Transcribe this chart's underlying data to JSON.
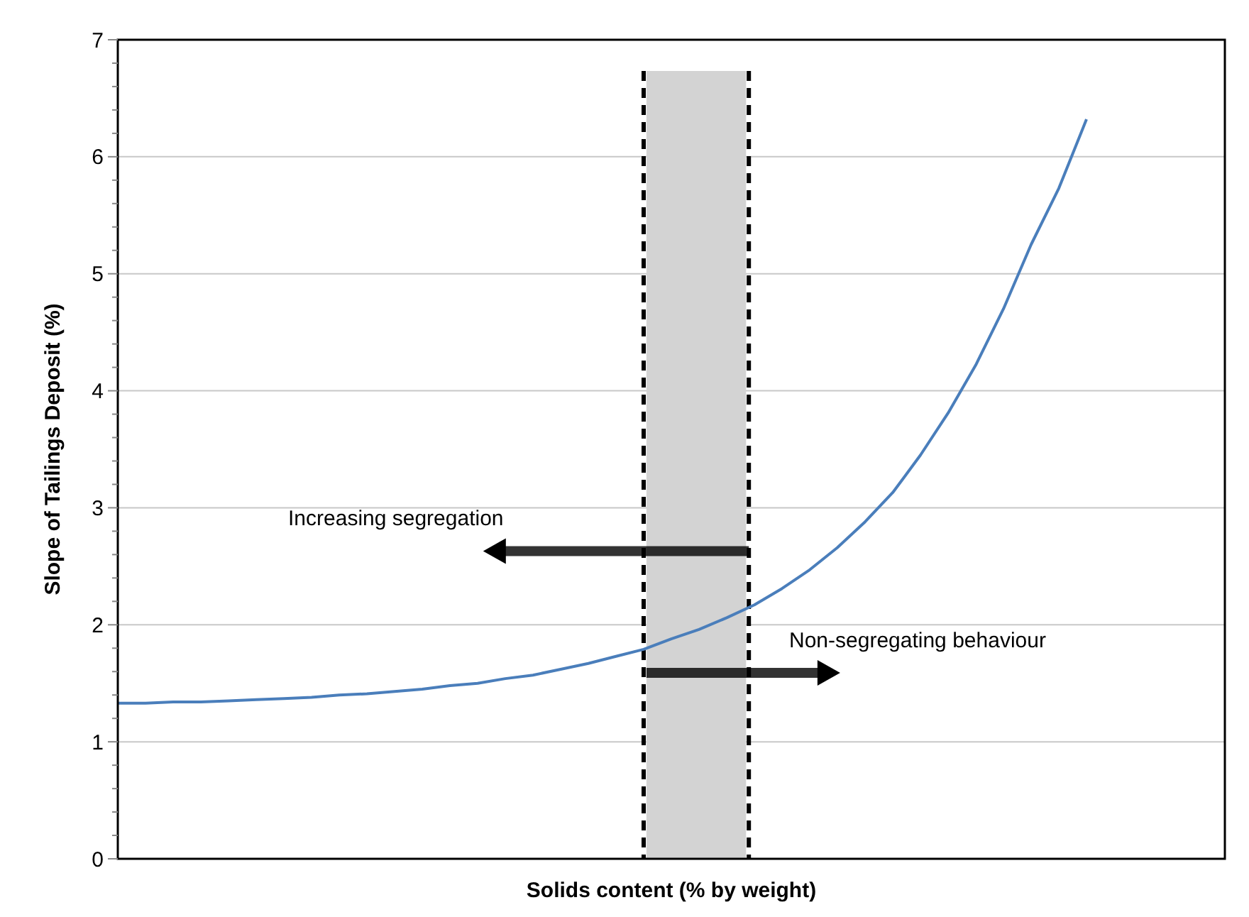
{
  "chart_data": {
    "type": "line",
    "xlabel": "Solids content (% by weight)",
    "ylabel": "Slope of Tailings Deposit (%)",
    "categories": [
      null,
      null,
      null,
      null,
      null,
      null,
      null,
      null,
      null,
      null,
      null,
      null,
      null,
      null,
      null,
      null,
      null,
      null,
      null,
      null,
      null,
      null,
      null,
      null,
      null,
      null,
      null,
      null,
      null,
      null,
      null,
      null,
      null,
      null,
      null,
      null,
      null,
      null,
      null,
      null,
      null
    ],
    "series": [
      {
        "color": "#4a7ebb",
        "values": [
          1.33,
          1.33,
          1.34,
          1.34,
          1.35,
          1.36,
          1.37,
          1.38,
          1.4,
          1.41,
          1.43,
          1.45,
          1.48,
          1.5,
          1.54,
          1.57,
          1.62,
          1.67,
          1.73,
          1.79,
          1.88,
          1.96,
          2.06,
          2.17,
          2.31,
          2.47,
          2.66,
          2.88,
          3.13,
          3.45,
          3.81,
          4.22,
          4.7,
          5.25,
          5.73,
          6.32,
          null,
          null,
          null,
          null,
          null
        ]
      }
    ],
    "ylim": [
      0,
      7
    ],
    "yticks": [
      0,
      1,
      2,
      3,
      4,
      5,
      6,
      7
    ],
    "tick_labels": "y",
    "grid": "y",
    "marker": "none",
    "line_style": "solid",
    "annotations": [
      "Increasing segregation",
      "Non-segregating behaviour"
    ]
  }
}
